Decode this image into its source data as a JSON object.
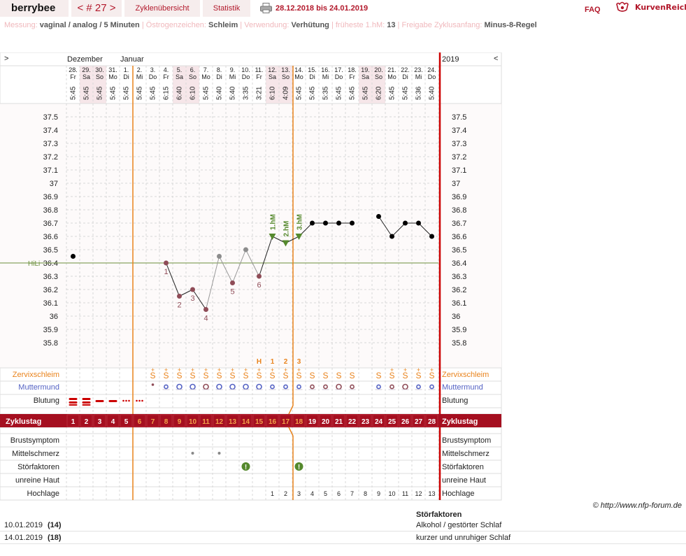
{
  "header": {
    "brand": "berrybee",
    "cycle_nav": {
      "prev": "<",
      "label": "# 27",
      "next": ">"
    },
    "overview_label": "Zyklenübersicht",
    "stats_label": "Statistik",
    "date_range": "28.12.2018 bis 24.01.2019",
    "faq_label": "FAQ",
    "logo_text": "KurvenReich"
  },
  "info": [
    {
      "label": "Messung:",
      "value": "vaginal / analog / 5 Minuten"
    },
    {
      "label": "Östrogenzeichen:",
      "value": "Schleim"
    },
    {
      "label": "Verwendung:",
      "value": "Verhütung"
    },
    {
      "label": "früheste 1.hM:",
      "value": "13"
    },
    {
      "label": "Freigabe Zyklusanfang:",
      "value": "Minus-8-Regel"
    }
  ],
  "chart_nav": {
    "left": ">",
    "right": "<",
    "year": "2019"
  },
  "months": [
    {
      "label": "Dezember",
      "day_index": 0
    },
    {
      "label": "Januar",
      "day_index": 4
    }
  ],
  "days": [
    {
      "date": "28.",
      "weekday": "Fr",
      "time": "5:45"
    },
    {
      "date": "29.",
      "weekday": "Sa",
      "time": "5:45"
    },
    {
      "date": "30.",
      "weekday": "So",
      "time": "5:45"
    },
    {
      "date": "31.",
      "weekday": "Mo",
      "time": "5:45"
    },
    {
      "date": "1.",
      "weekday": "Di",
      "time": "5:45"
    },
    {
      "date": "2.",
      "weekday": "Mi",
      "time": "5:45"
    },
    {
      "date": "3.",
      "weekday": "Do",
      "time": "5:45"
    },
    {
      "date": "4.",
      "weekday": "Fr",
      "time": "6:15"
    },
    {
      "date": "5.",
      "weekday": "Sa",
      "time": "6:40"
    },
    {
      "date": "6.",
      "weekday": "So",
      "time": "6:10"
    },
    {
      "date": "7.",
      "weekday": "Mo",
      "time": "5:45"
    },
    {
      "date": "8.",
      "weekday": "Di",
      "time": "5:40"
    },
    {
      "date": "9.",
      "weekday": "Mi",
      "time": "5:40"
    },
    {
      "date": "10.",
      "weekday": "Do",
      "time": "3:35"
    },
    {
      "date": "11.",
      "weekday": "Fr",
      "time": "3:21"
    },
    {
      "date": "12.",
      "weekday": "Sa",
      "time": "6:10"
    },
    {
      "date": "13.",
      "weekday": "So",
      "time": "4:09"
    },
    {
      "date": "14.",
      "weekday": "Mo",
      "time": "5:45"
    },
    {
      "date": "15.",
      "weekday": "Di",
      "time": "5:45"
    },
    {
      "date": "16.",
      "weekday": "Mi",
      "time": "5:35"
    },
    {
      "date": "17.",
      "weekday": "Do",
      "time": "5:45"
    },
    {
      "date": "18.",
      "weekday": "Fr",
      "time": "5:45"
    },
    {
      "date": "19.",
      "weekday": "Sa",
      "time": "5:45"
    },
    {
      "date": "20.",
      "weekday": "So",
      "time": "6:20"
    },
    {
      "date": "21.",
      "weekday": "Mo",
      "time": "5:45"
    },
    {
      "date": "22.",
      "weekday": "Di",
      "time": "5:45"
    },
    {
      "date": "23.",
      "weekday": "Mi",
      "time": "5:36"
    },
    {
      "date": "24.",
      "weekday": "Do",
      "time": "5:40"
    }
  ],
  "y_ticks": [
    "37.5",
    "37.4",
    "37.3",
    "37.2",
    "37.1",
    "37",
    "36.9",
    "36.8",
    "36.7",
    "36.6",
    "36.5",
    "36.4",
    "36.3",
    "36.2",
    "36.1",
    "36",
    "35.9",
    "35.8"
  ],
  "chart_data": {
    "type": "line",
    "ylim": [
      35.8,
      37.5
    ],
    "hili": {
      "label": "HiLi",
      "value": 36.4
    },
    "temperatures": [
      36.45,
      null,
      null,
      null,
      null,
      null,
      null,
      36.4,
      36.15,
      36.2,
      36.05,
      36.45,
      36.25,
      36.5,
      36.3,
      36.6,
      36.55,
      36.6,
      36.7,
      36.7,
      36.7,
      36.7,
      null,
      36.75,
      36.6,
      36.7,
      36.7,
      36.6
    ],
    "low_labels": [
      {
        "day": 7,
        "label": "1"
      },
      {
        "day": 8,
        "label": "2"
      },
      {
        "day": 9,
        "label": "3"
      },
      {
        "day": 10,
        "label": "4"
      },
      {
        "day": 12,
        "label": "5"
      },
      {
        "day": 14,
        "label": "6"
      }
    ],
    "high_labels": [
      {
        "day": 15,
        "label": "1.hM"
      },
      {
        "day": 16,
        "label": "2.hM"
      },
      {
        "day": 17,
        "label": "3.hM"
      }
    ],
    "peak_labels": [
      {
        "day": 14,
        "label": "H"
      },
      {
        "day": 15,
        "label": "1"
      },
      {
        "day": 16,
        "label": "2"
      },
      {
        "day": 17,
        "label": "3"
      }
    ],
    "cycle_days": [
      "1",
      "2",
      "3",
      "4",
      "5",
      "6",
      "7",
      "8",
      "9",
      "10",
      "11",
      "12",
      "13",
      "14",
      "15",
      "16",
      "17",
      "18",
      "19",
      "20",
      "21",
      "22",
      "23",
      "24",
      "25",
      "26",
      "27",
      "28"
    ],
    "hochlage": [
      {
        "day": 15,
        "label": "1"
      },
      {
        "day": 16,
        "label": "2"
      },
      {
        "day": 17,
        "label": "3"
      },
      {
        "day": 18,
        "label": "4"
      },
      {
        "day": 19,
        "label": "5"
      },
      {
        "day": 20,
        "label": "6"
      },
      {
        "day": 21,
        "label": "7"
      },
      {
        "day": 22,
        "label": "8"
      },
      {
        "day": 23,
        "label": "9"
      },
      {
        "day": 24,
        "label": "10"
      },
      {
        "day": 25,
        "label": "11"
      },
      {
        "day": 26,
        "label": "12"
      },
      {
        "day": 27,
        "label": "13"
      }
    ],
    "bleeding": [
      3,
      3,
      2,
      2,
      1,
      1,
      0,
      0,
      0,
      0,
      0,
      0,
      0,
      0,
      0,
      0,
      0,
      0,
      0,
      0,
      0,
      0,
      0,
      0,
      0,
      0,
      0,
      0
    ],
    "mucus_sign": "S",
    "mucus_plus_days": [
      6,
      7,
      8,
      9,
      10,
      11,
      12,
      13,
      14,
      15,
      16,
      17,
      24,
      25,
      26,
      27
    ],
    "mucus_days": [
      6,
      7,
      8,
      9,
      10,
      11,
      12,
      13,
      14,
      15,
      16,
      17,
      18,
      19,
      20,
      21,
      23,
      24,
      25,
      26,
      27
    ],
    "cervix_days": [
      6,
      7,
      8,
      9,
      10,
      11,
      12,
      13,
      14,
      15,
      16,
      17,
      18,
      19,
      20,
      21,
      23,
      24,
      25,
      26,
      27
    ],
    "mittelschmerz_days": [
      9,
      11
    ],
    "stoerfaktor_days": [
      13,
      17
    ]
  },
  "row_labels": {
    "zervix": "Zervixschleim",
    "muttermund": "Muttermund",
    "blutung": "Blutung",
    "zyklustag": "Zyklustag",
    "brust": "Brustsymptom",
    "mittelschmerz": "Mittelschmerz",
    "stoer": "Störfaktoren",
    "haut": "unreine Haut",
    "hochlage": "Hochlage"
  },
  "copyright": "© http://www.nfp-forum.de",
  "notes": {
    "header": "Störfaktoren",
    "rows": [
      {
        "date": "10.01.2019",
        "cycle_day": "(14)",
        "text": "Alkohol / gestörter Schlaf"
      },
      {
        "date": "14.01.2019",
        "cycle_day": "(18)",
        "text": "kurzer und unruhiger Schlaf"
      }
    ]
  },
  "colors": {
    "accent": "#b2182b",
    "orange": "#e9831c",
    "cervix": "#5563c4",
    "green": "#55892d",
    "low": "#8f4c57"
  }
}
